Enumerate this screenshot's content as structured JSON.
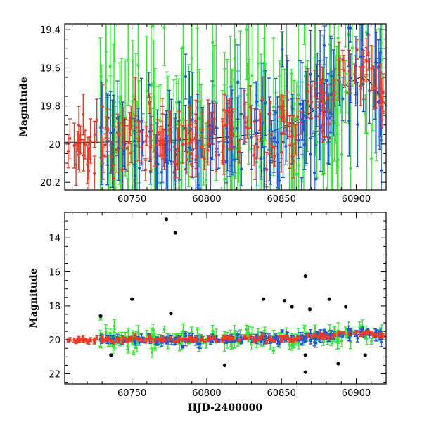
{
  "chart_data": [
    {
      "type": "scatter",
      "panel": "top",
      "xlabel": "",
      "ylabel": "Magnitude",
      "xlim": [
        60705,
        60920
      ],
      "ylim": [
        19.37,
        20.24
      ],
      "y_inverted": true,
      "x_ticks": [
        60750,
        60800,
        60850,
        60900
      ],
      "x_tick_labels": [
        "60750",
        "60800",
        "60850",
        "60900"
      ],
      "y_ticks": [
        19.4,
        19.6,
        19.8,
        20.0,
        20.2
      ],
      "y_tick_labels": [
        "19.4",
        "19.6",
        "19.8",
        "20",
        "20.2"
      ],
      "model_curve": {
        "x": [
          60705,
          60730,
          60760,
          60790,
          60820,
          60845,
          60865,
          60880,
          60895,
          60905,
          60912,
          60920
        ],
        "y": [
          19.99,
          19.99,
          19.985,
          19.975,
          19.96,
          19.93,
          19.86,
          19.78,
          19.68,
          19.64,
          19.7,
          19.8
        ]
      },
      "series": [
        {
          "name": "",
          "color": "#33e833"
        },
        {
          "name": "",
          "color": "#1f55e0"
        },
        {
          "name": "",
          "color": "#f03a24"
        }
      ],
      "grid": false
    },
    {
      "type": "scatter",
      "panel": "bottom",
      "xlabel": "HJD-2400000",
      "ylabel": "Magnitude",
      "xlim": [
        60705,
        60920
      ],
      "ylim": [
        12.5,
        22.6
      ],
      "y_inverted": true,
      "x_ticks": [
        60750,
        60800,
        60850,
        60900
      ],
      "x_tick_labels": [
        "60750",
        "60800",
        "60850",
        "60900"
      ],
      "y_ticks": [
        14,
        16,
        18,
        20,
        22
      ],
      "y_tick_labels": [
        "14",
        "16",
        "18",
        "20",
        "22"
      ],
      "model_curve": {
        "x": [
          60705,
          60760,
          60820,
          60865,
          60895,
          60920
        ],
        "y": [
          20.0,
          19.99,
          19.96,
          19.86,
          19.68,
          19.8
        ]
      },
      "outliers": [
        {
          "x": 60773,
          "y": 12.9,
          "color": "#1f55e0"
        },
        {
          "x": 60779,
          "y": 13.7,
          "color": "#1f55e0"
        },
        {
          "x": 60866,
          "y": 16.25,
          "color": "#1f55e0"
        },
        {
          "x": 60750,
          "y": 17.6,
          "color": "#33e833"
        },
        {
          "x": 60838,
          "y": 17.6,
          "color": "#1f55e0"
        },
        {
          "x": 60852,
          "y": 17.7,
          "color": "#33e833"
        },
        {
          "x": 60882,
          "y": 17.6,
          "color": "#33e833"
        },
        {
          "x": 60857,
          "y": 18.05,
          "color": "#1f55e0"
        },
        {
          "x": 60869,
          "y": 18.2,
          "color": "#33e833"
        },
        {
          "x": 60893,
          "y": 18.05,
          "color": "#33e833"
        },
        {
          "x": 60776,
          "y": 18.45,
          "color": "#1f55e0"
        },
        {
          "x": 60729,
          "y": 18.6,
          "color": "#33e833"
        },
        {
          "x": 60812,
          "y": 21.5,
          "color": "#1f55e0"
        },
        {
          "x": 60866,
          "y": 21.9,
          "color": "#1f55e0"
        },
        {
          "x": 60888,
          "y": 21.4,
          "color": "#1f55e0"
        },
        {
          "x": 60906,
          "y": 20.9,
          "color": "#1f55e0"
        },
        {
          "x": 60736,
          "y": 20.9,
          "color": "#33e833"
        },
        {
          "x": 60866,
          "y": 20.9,
          "color": "#1f55e0"
        }
      ],
      "series": [
        {
          "name": "",
          "color": "#33e833"
        },
        {
          "name": "",
          "color": "#1f55e0"
        },
        {
          "name": "",
          "color": "#f03a24"
        }
      ],
      "grid": false
    }
  ]
}
